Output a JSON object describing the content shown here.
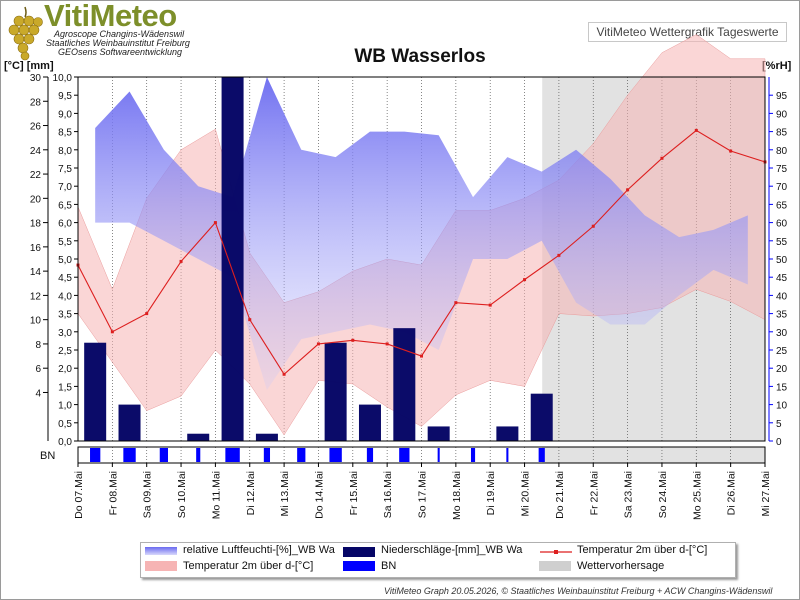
{
  "header": {
    "logo_word": "VitiMeteo",
    "logo_lines": [
      "Agroscope Changins-Wädenswil",
      "Staatliches Weinbauinstitut Freiburg",
      "GEOsens Softwareentwicklung"
    ],
    "subtitle": "VitiMeteo Wettergrafik Tageswerte"
  },
  "units": {
    "left": "[°C] [mm]",
    "right": "[%rH]"
  },
  "footer": "VitiMeteo Graph 20.05.2026, © Staatliches Weinbauinstitut Freiburg + ACW Changins-Wädenswil",
  "legend": {
    "humidity": "relative Luftfeuchti-[%]_WB Wa",
    "rain": "Niederschläge-[mm]_WB Wa",
    "temp_line": "Temperatur 2m über d-[°C]",
    "temp_band": "Temperatur 2m über d-[°C]",
    "bn": "BN",
    "forecast": "Wettervorhersage"
  },
  "colors": {
    "humidity": "#7f7ff2",
    "rain": "#060666",
    "temp_line": "#dd1f1f",
    "temp_band": "#f6b4b4",
    "bn": "#0000ff",
    "forecast": "#cfcfcf",
    "rain_axis": "#0000ff"
  },
  "chart_data": {
    "type": "line",
    "title": "WB Wasserlos",
    "x_dates": [
      "Do 07.Mai",
      "Fr 08.Mai",
      "Sa 09.Mai",
      "So 10.Mai",
      "Mo 11.Mai",
      "Di 12.Mai",
      "Mi 13.Mai",
      "Do 14.Mai",
      "Fr 15.Mai",
      "Sa 16.Mai",
      "So 17.Mai",
      "Mo 18.Mai",
      "Di 19.Mai",
      "Mi 20.Mai",
      "Do 21.Mai",
      "Fr 22.Mai",
      "Sa 23.Mai",
      "So 24.Mai",
      "Mo 25.Mai",
      "Di 26.Mai",
      "Mi 27.Mai"
    ],
    "temp_axis": {
      "ticks": [
        4,
        6,
        8,
        10,
        12,
        14,
        16,
        18,
        20,
        22,
        24,
        26,
        28,
        30
      ],
      "range": [
        0,
        30
      ]
    },
    "rain_axis": {
      "ticks": [
        "0,0",
        "0,5",
        "1,0",
        "1,5",
        "2,0",
        "2,5",
        "3,0",
        "3,5",
        "4,0",
        "4,5",
        "5,0",
        "5,5",
        "6,0",
        "6,5",
        "7,0",
        "7,5",
        "8,0",
        "8,5",
        "9,0",
        "9,5",
        "10,0"
      ],
      "range": [
        0,
        10
      ]
    },
    "humidity_axis": {
      "ticks": [
        0,
        5,
        10,
        15,
        20,
        25,
        30,
        35,
        40,
        45,
        50,
        55,
        60,
        65,
        70,
        75,
        80,
        85,
        90,
        95
      ],
      "range": [
        0,
        100
      ]
    },
    "forecast_start": "Mi 20.Mai",
    "series": [
      {
        "name": "relative Luftfeuchti-[%]_WB Wa",
        "kind": "humidity_area",
        "days": [
          "Do 07.Mai",
          "Fr 08.Mai",
          "Sa 09.Mai",
          "So 10.Mai",
          "Mo 11.Mai",
          "Di 12.Mai",
          "Mi 13.Mai",
          "Do 14.Mai",
          "Fr 15.Mai",
          "Sa 16.Mai",
          "So 17.Mai",
          "Mo 18.Mai",
          "Di 19.Mai",
          "Mi 20.Mai",
          "Do 21.Mai",
          "Fr 22.Mai",
          "Sa 23.Mai",
          "So 24.Mai",
          "Mo 25.Mai",
          "Di 26.Mai"
        ],
        "max": [
          86,
          96,
          80,
          70,
          67,
          100,
          80,
          78,
          85,
          85,
          84,
          67,
          78,
          74,
          80,
          72,
          62,
          56,
          58,
          62
        ],
        "min": [
          60,
          60,
          55,
          50,
          45,
          14,
          28,
          30,
          32,
          30,
          25,
          50,
          50,
          55,
          38,
          32,
          32,
          40,
          47,
          43
        ]
      },
      {
        "name": "Niederschläge-[mm]_WB Wa",
        "kind": "rain_bar",
        "days": [
          "Do 07.Mai",
          "Fr 08.Mai",
          "Sa 09.Mai",
          "So 10.Mai",
          "Mo 11.Mai",
          "Di 12.Mai",
          "Mi 13.Mai",
          "Do 14.Mai",
          "Fr 15.Mai",
          "Sa 16.Mai",
          "So 17.Mai",
          "Mo 18.Mai",
          "Di 19.Mai",
          "Mi 20.Mai"
        ],
        "values": [
          2.7,
          1.0,
          0,
          0.2,
          10.1,
          0.2,
          0,
          2.7,
          1.0,
          3.1,
          0.4,
          0,
          0.4,
          1.3
        ]
      },
      {
        "name": "Temperatur 2m über d-[°C]",
        "kind": "temp_line",
        "days": [
          "Do 07.Mai",
          "Fr 08.Mai",
          "Sa 09.Mai",
          "So 10.Mai",
          "Mo 11.Mai",
          "Di 12.Mai",
          "Mi 13.Mai",
          "Do 14.Mai",
          "Fr 15.Mai",
          "Sa 16.Mai",
          "So 17.Mai",
          "Mo 18.Mai",
          "Di 19.Mai",
          "Mi 20.Mai",
          "Do 21.Mai",
          "Fr 22.Mai",
          "Sa 23.Mai",
          "So 24.Mai",
          "Mo 25.Mai",
          "Di 26.Mai",
          "Mi 27.Mai"
        ],
        "values": [
          14.5,
          9.0,
          10.5,
          14.8,
          18.0,
          10.0,
          5.5,
          8.0,
          8.3,
          8.0,
          7.0,
          11.4,
          11.2,
          13.3,
          15.3,
          17.7,
          20.7,
          23.3,
          25.6,
          23.9,
          23.0
        ]
      },
      {
        "name": "Temperatur 2m über d-[°C]",
        "kind": "temp_band",
        "days": [
          "Do 07.Mai",
          "Fr 08.Mai",
          "Sa 09.Mai",
          "So 10.Mai",
          "Mo 11.Mai",
          "Di 12.Mai",
          "Mi 13.Mai",
          "Do 14.Mai",
          "Fr 15.Mai",
          "Sa 16.Mai",
          "So 17.Mai",
          "Mo 18.Mai",
          "Di 19.Mai",
          "Mi 20.Mai",
          "Do 21.Mai",
          "Fr 22.Mai",
          "Sa 23.Mai",
          "So 24.Mai",
          "Mo 25.Mai",
          "Di 26.Mai",
          "Mi 27.Mai"
        ],
        "max": [
          19.3,
          12.5,
          20.0,
          24.0,
          25.7,
          15.5,
          11.4,
          12.3,
          14.0,
          15.0,
          14.5,
          19.0,
          19.0,
          20.0,
          21.5,
          24.5,
          28.5,
          32.0,
          33.5,
          31.5,
          31.5
        ],
        "min": [
          10.5,
          6.5,
          2.5,
          3.7,
          7.5,
          4.7,
          0.5,
          5.0,
          4.7,
          2.8,
          1.2,
          3.8,
          5.0,
          4.5,
          10.5,
          10.3,
          10.5,
          11.0,
          12.5,
          11.5,
          10.0
        ]
      },
      {
        "name": "BN",
        "kind": "bn_strip",
        "days": [
          "Do 07.Mai",
          "Fr 08.Mai",
          "Sa 09.Mai",
          "So 10.Mai",
          "Mo 11.Mai",
          "Di 12.Mai",
          "Mi 13.Mai",
          "Do 14.Mai",
          "Fr 15.Mai",
          "Sa 16.Mai",
          "So 17.Mai",
          "Mo 18.Mai",
          "Di 19.Mai",
          "Mi 20.Mai"
        ],
        "values": [
          0.5,
          0.6,
          0.4,
          0.2,
          0.7,
          0.3,
          0.4,
          0.6,
          0.3,
          0.5,
          0.1,
          0.2,
          0.1,
          0.3
        ]
      }
    ]
  }
}
